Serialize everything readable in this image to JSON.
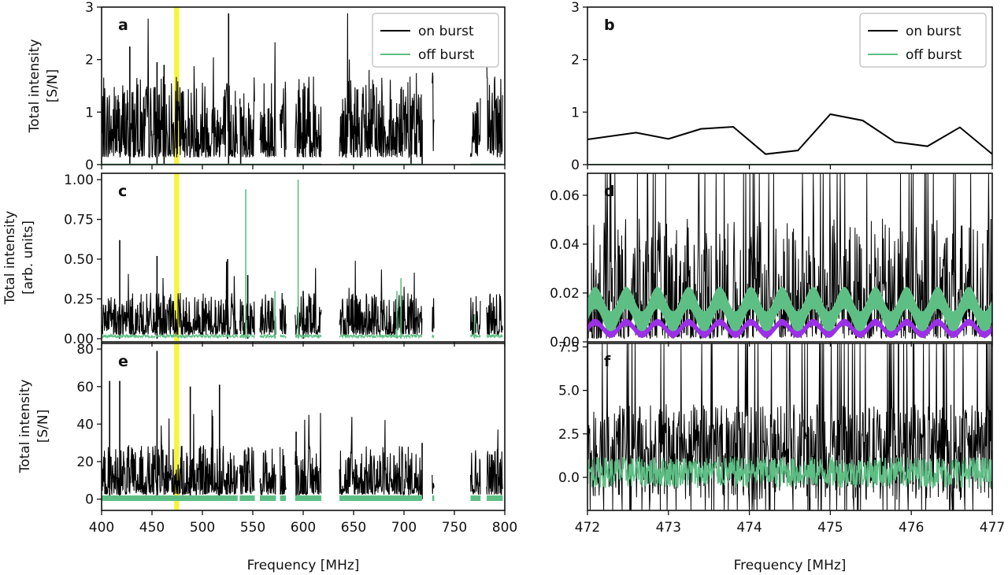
{
  "figure": {
    "x_title": "Frequency [MHz]",
    "y_titles": {
      "row1": [
        "Total intensity",
        "[S/N]"
      ],
      "row2": [
        "Total intensity",
        "[arb. units]"
      ],
      "row3": [
        "Total intensity",
        "[S/N]"
      ]
    },
    "highlight_color": "#f5f53a",
    "colors": {
      "on_burst": "#000000",
      "off_burst": "#5ebf85",
      "model": "#9b30e6"
    },
    "legend": {
      "on": "on burst",
      "off": "off burst"
    }
  },
  "chart_data": [
    {
      "panel": "a",
      "type": "line",
      "xlim": [
        400,
        800
      ],
      "ylim": [
        0,
        3
      ],
      "xticks": [
        400,
        450,
        500,
        550,
        600,
        650,
        700,
        750,
        800
      ],
      "yticks": [
        "0",
        "1",
        "2",
        "3"
      ],
      "ytick_values": [
        0,
        1,
        2,
        3
      ],
      "highlight": [
        472,
        477
      ],
      "legend": {
        "placement": "top-right",
        "entries": [
          "on burst",
          "off burst"
        ]
      },
      "series": [
        {
          "name": "on burst",
          "segments": [
            [
              400,
              535
            ],
            [
              537,
              552
            ],
            [
              557,
              573
            ],
            [
              577,
              583
            ],
            [
              592,
              618
            ],
            [
              636,
              718
            ],
            [
              728,
              730
            ],
            [
              766,
              776
            ],
            [
              782,
              798
            ]
          ],
          "typical": 0.7,
          "peaks": [
            [
              428,
              2.25
            ],
            [
              455,
              1.95
            ],
            [
              462,
              1.9
            ],
            [
              526,
              2.88
            ],
            [
              538,
              1.1
            ],
            [
              707,
              1.12
            ],
            [
              718,
              0.85
            ]
          ]
        },
        {
          "name": "off burst",
          "segments": [
            [
              400,
              618
            ],
            [
              636,
              718
            ],
            [
              766,
              798
            ]
          ],
          "value": 0
        }
      ]
    },
    {
      "panel": "b",
      "type": "line",
      "xlim": [
        472,
        477
      ],
      "ylim": [
        0,
        3
      ],
      "xticks": [
        472,
        473,
        474,
        475,
        476,
        477
      ],
      "yticks": [
        "0",
        "1",
        "2",
        "3"
      ],
      "ytick_values": [
        0,
        1,
        2,
        3
      ],
      "legend": {
        "placement": "top-right",
        "entries": [
          "on burst",
          "off burst"
        ]
      },
      "series": [
        {
          "name": "on burst",
          "x": [
            472.0,
            472.6,
            473.0,
            473.4,
            473.8,
            474.2,
            474.6,
            475.0,
            475.4,
            475.8,
            476.2,
            476.6,
            477.0
          ],
          "y": [
            0.48,
            0.61,
            0.49,
            0.68,
            0.72,
            0.2,
            0.27,
            0.96,
            0.84,
            0.43,
            0.35,
            0.71,
            0.2
          ]
        },
        {
          "name": "off burst",
          "x": [
            472,
            477
          ],
          "y": [
            0,
            0
          ]
        }
      ]
    },
    {
      "panel": "c",
      "type": "line",
      "xlim": [
        400,
        800
      ],
      "ylim": [
        -0.02,
        1.04
      ],
      "xticks": [
        400,
        450,
        500,
        550,
        600,
        650,
        700,
        750,
        800
      ],
      "yticks": [
        "0.00",
        "0.25",
        "0.50",
        "0.75",
        "1.00"
      ],
      "ytick_values": [
        0,
        0.25,
        0.5,
        0.75,
        1.0
      ],
      "highlight": [
        472,
        477
      ],
      "series": [
        {
          "name": "on burst",
          "segments": [
            [
              400,
              535
            ],
            [
              537,
              552
            ],
            [
              557,
              573
            ],
            [
              577,
              583
            ],
            [
              592,
              618
            ],
            [
              636,
              718
            ],
            [
              728,
              730
            ],
            [
              766,
              776
            ],
            [
              782,
              798
            ]
          ],
          "typical": 0.12,
          "peaks": [
            [
              418,
              0.62
            ],
            [
              455,
              0.52
            ],
            [
              525,
              0.5
            ],
            [
              545,
              0.4
            ],
            [
              600,
              0.3
            ]
          ]
        },
        {
          "name": "off burst",
          "segments": [
            [
              400,
              535
            ],
            [
              537,
              552
            ],
            [
              557,
              573
            ],
            [
              577,
              583
            ],
            [
              592,
              618
            ],
            [
              636,
              718
            ],
            [
              728,
              730
            ],
            [
              766,
              776
            ],
            [
              782,
              798
            ]
          ],
          "typical": 0.02,
          "peaks": [
            [
              543,
              0.94
            ],
            [
              595,
              1.0
            ],
            [
              572,
              0.3
            ],
            [
              693,
              0.3
            ],
            [
              697,
              0.38
            ],
            [
              770,
              0.15
            ]
          ]
        }
      ]
    },
    {
      "panel": "d",
      "type": "line",
      "xlim": [
        472,
        477
      ],
      "ylim": [
        0,
        0.069
      ],
      "xticks": [
        472,
        473,
        474,
        475,
        476,
        477
      ],
      "yticks": [
        "0.00",
        "0.02",
        "0.04",
        "0.06"
      ],
      "ytick_values": [
        0,
        0.02,
        0.04,
        0.06
      ],
      "series": [
        {
          "name": "on burst",
          "typical": 0.014,
          "max": 0.069
        },
        {
          "name": "off burst",
          "center": 0.013,
          "amplitude": 0.005,
          "periods": 13
        },
        {
          "name": "model",
          "center": 0.0055,
          "amplitude": 0.0025,
          "periods": 13
        }
      ]
    },
    {
      "panel": "e",
      "type": "line",
      "xlim": [
        400,
        800
      ],
      "ylim": [
        -6,
        83
      ],
      "xticks": [
        400,
        450,
        500,
        550,
        600,
        650,
        700,
        750,
        800
      ],
      "yticks": [
        "0",
        "20",
        "40",
        "60",
        "80"
      ],
      "ytick_values": [
        0,
        20,
        40,
        60,
        80
      ],
      "highlight": [
        472,
        477
      ],
      "series": [
        {
          "name": "on burst",
          "segments": [
            [
              400,
              535
            ],
            [
              537,
              552
            ],
            [
              557,
              573
            ],
            [
              577,
              583
            ],
            [
              592,
              618
            ],
            [
              636,
              718
            ],
            [
              728,
              730
            ],
            [
              766,
              776
            ],
            [
              782,
              798
            ]
          ],
          "typical": 12,
          "peaks": [
            [
              408,
              63
            ],
            [
              418,
              63
            ],
            [
              455,
              79
            ],
            [
              488,
              60
            ],
            [
              517,
              61
            ],
            [
              593,
              36
            ],
            [
              718,
              30
            ]
          ]
        },
        {
          "name": "off burst",
          "segments": [
            [
              400,
              535
            ],
            [
              537,
              552
            ],
            [
              557,
              573
            ],
            [
              577,
              583
            ],
            [
              592,
              618
            ],
            [
              636,
              718
            ],
            [
              728,
              730
            ],
            [
              766,
              776
            ],
            [
              782,
              798
            ]
          ],
          "value": 0.5
        }
      ]
    },
    {
      "panel": "f",
      "type": "line",
      "xlim": [
        472,
        477
      ],
      "ylim": [
        -1.9,
        7.7
      ],
      "xticks": [
        472,
        473,
        474,
        475,
        476,
        477
      ],
      "yticks": [
        "0.0",
        "2.5",
        "5.0",
        "7.5"
      ],
      "ytick_values": [
        0,
        2.5,
        5,
        7.5
      ],
      "series": [
        {
          "name": "on burst",
          "typical": 2.5,
          "max": 7.7,
          "min": -1.9
        },
        {
          "name": "off burst",
          "center": 0.3,
          "band": 0.9
        }
      ]
    }
  ]
}
